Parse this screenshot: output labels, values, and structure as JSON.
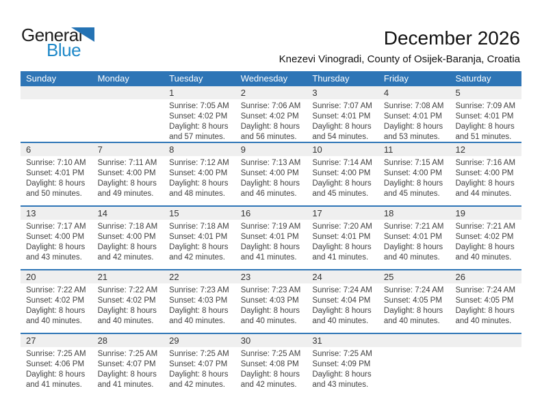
{
  "logo": {
    "part1": "General",
    "part2": "Blue"
  },
  "header": {
    "title": "December 2026",
    "subtitle": "Knezevi Vinogradi, County of Osijek-Baranja, Croatia"
  },
  "colors": {
    "header_bar_blue": "#2e75b6",
    "week_divider_blue": "#2e75b6",
    "day_strip_gray": "#efefef",
    "logo_blue": "#1e88c8",
    "logo_triangle_blue": "#2573b4"
  },
  "calendar": {
    "day_headers": [
      "Sunday",
      "Monday",
      "Tuesday",
      "Wednesday",
      "Thursday",
      "Friday",
      "Saturday"
    ],
    "weeks": [
      [
        null,
        null,
        {
          "day": "1",
          "sunrise": "Sunrise: 7:05 AM",
          "sunset": "Sunset: 4:02 PM",
          "daylight1": "Daylight: 8 hours",
          "daylight2": "and 57 minutes."
        },
        {
          "day": "2",
          "sunrise": "Sunrise: 7:06 AM",
          "sunset": "Sunset: 4:02 PM",
          "daylight1": "Daylight: 8 hours",
          "daylight2": "and 56 minutes."
        },
        {
          "day": "3",
          "sunrise": "Sunrise: 7:07 AM",
          "sunset": "Sunset: 4:01 PM",
          "daylight1": "Daylight: 8 hours",
          "daylight2": "and 54 minutes."
        },
        {
          "day": "4",
          "sunrise": "Sunrise: 7:08 AM",
          "sunset": "Sunset: 4:01 PM",
          "daylight1": "Daylight: 8 hours",
          "daylight2": "and 53 minutes."
        },
        {
          "day": "5",
          "sunrise": "Sunrise: 7:09 AM",
          "sunset": "Sunset: 4:01 PM",
          "daylight1": "Daylight: 8 hours",
          "daylight2": "and 51 minutes."
        }
      ],
      [
        {
          "day": "6",
          "sunrise": "Sunrise: 7:10 AM",
          "sunset": "Sunset: 4:01 PM",
          "daylight1": "Daylight: 8 hours",
          "daylight2": "and 50 minutes."
        },
        {
          "day": "7",
          "sunrise": "Sunrise: 7:11 AM",
          "sunset": "Sunset: 4:00 PM",
          "daylight1": "Daylight: 8 hours",
          "daylight2": "and 49 minutes."
        },
        {
          "day": "8",
          "sunrise": "Sunrise: 7:12 AM",
          "sunset": "Sunset: 4:00 PM",
          "daylight1": "Daylight: 8 hours",
          "daylight2": "and 48 minutes."
        },
        {
          "day": "9",
          "sunrise": "Sunrise: 7:13 AM",
          "sunset": "Sunset: 4:00 PM",
          "daylight1": "Daylight: 8 hours",
          "daylight2": "and 46 minutes."
        },
        {
          "day": "10",
          "sunrise": "Sunrise: 7:14 AM",
          "sunset": "Sunset: 4:00 PM",
          "daylight1": "Daylight: 8 hours",
          "daylight2": "and 45 minutes."
        },
        {
          "day": "11",
          "sunrise": "Sunrise: 7:15 AM",
          "sunset": "Sunset: 4:00 PM",
          "daylight1": "Daylight: 8 hours",
          "daylight2": "and 45 minutes."
        },
        {
          "day": "12",
          "sunrise": "Sunrise: 7:16 AM",
          "sunset": "Sunset: 4:00 PM",
          "daylight1": "Daylight: 8 hours",
          "daylight2": "and 44 minutes."
        }
      ],
      [
        {
          "day": "13",
          "sunrise": "Sunrise: 7:17 AM",
          "sunset": "Sunset: 4:00 PM",
          "daylight1": "Daylight: 8 hours",
          "daylight2": "and 43 minutes."
        },
        {
          "day": "14",
          "sunrise": "Sunrise: 7:18 AM",
          "sunset": "Sunset: 4:00 PM",
          "daylight1": "Daylight: 8 hours",
          "daylight2": "and 42 minutes."
        },
        {
          "day": "15",
          "sunrise": "Sunrise: 7:18 AM",
          "sunset": "Sunset: 4:01 PM",
          "daylight1": "Daylight: 8 hours",
          "daylight2": "and 42 minutes."
        },
        {
          "day": "16",
          "sunrise": "Sunrise: 7:19 AM",
          "sunset": "Sunset: 4:01 PM",
          "daylight1": "Daylight: 8 hours",
          "daylight2": "and 41 minutes."
        },
        {
          "day": "17",
          "sunrise": "Sunrise: 7:20 AM",
          "sunset": "Sunset: 4:01 PM",
          "daylight1": "Daylight: 8 hours",
          "daylight2": "and 41 minutes."
        },
        {
          "day": "18",
          "sunrise": "Sunrise: 7:21 AM",
          "sunset": "Sunset: 4:01 PM",
          "daylight1": "Daylight: 8 hours",
          "daylight2": "and 40 minutes."
        },
        {
          "day": "19",
          "sunrise": "Sunrise: 7:21 AM",
          "sunset": "Sunset: 4:02 PM",
          "daylight1": "Daylight: 8 hours",
          "daylight2": "and 40 minutes."
        }
      ],
      [
        {
          "day": "20",
          "sunrise": "Sunrise: 7:22 AM",
          "sunset": "Sunset: 4:02 PM",
          "daylight1": "Daylight: 8 hours",
          "daylight2": "and 40 minutes."
        },
        {
          "day": "21",
          "sunrise": "Sunrise: 7:22 AM",
          "sunset": "Sunset: 4:02 PM",
          "daylight1": "Daylight: 8 hours",
          "daylight2": "and 40 minutes."
        },
        {
          "day": "22",
          "sunrise": "Sunrise: 7:23 AM",
          "sunset": "Sunset: 4:03 PM",
          "daylight1": "Daylight: 8 hours",
          "daylight2": "and 40 minutes."
        },
        {
          "day": "23",
          "sunrise": "Sunrise: 7:23 AM",
          "sunset": "Sunset: 4:03 PM",
          "daylight1": "Daylight: 8 hours",
          "daylight2": "and 40 minutes."
        },
        {
          "day": "24",
          "sunrise": "Sunrise: 7:24 AM",
          "sunset": "Sunset: 4:04 PM",
          "daylight1": "Daylight: 8 hours",
          "daylight2": "and 40 minutes."
        },
        {
          "day": "25",
          "sunrise": "Sunrise: 7:24 AM",
          "sunset": "Sunset: 4:05 PM",
          "daylight1": "Daylight: 8 hours",
          "daylight2": "and 40 minutes."
        },
        {
          "day": "26",
          "sunrise": "Sunrise: 7:24 AM",
          "sunset": "Sunset: 4:05 PM",
          "daylight1": "Daylight: 8 hours",
          "daylight2": "and 40 minutes."
        }
      ],
      [
        {
          "day": "27",
          "sunrise": "Sunrise: 7:25 AM",
          "sunset": "Sunset: 4:06 PM",
          "daylight1": "Daylight: 8 hours",
          "daylight2": "and 41 minutes."
        },
        {
          "day": "28",
          "sunrise": "Sunrise: 7:25 AM",
          "sunset": "Sunset: 4:07 PM",
          "daylight1": "Daylight: 8 hours",
          "daylight2": "and 41 minutes."
        },
        {
          "day": "29",
          "sunrise": "Sunrise: 7:25 AM",
          "sunset": "Sunset: 4:07 PM",
          "daylight1": "Daylight: 8 hours",
          "daylight2": "and 42 minutes."
        },
        {
          "day": "30",
          "sunrise": "Sunrise: 7:25 AM",
          "sunset": "Sunset: 4:08 PM",
          "daylight1": "Daylight: 8 hours",
          "daylight2": "and 42 minutes."
        },
        {
          "day": "31",
          "sunrise": "Sunrise: 7:25 AM",
          "sunset": "Sunset: 4:09 PM",
          "daylight1": "Daylight: 8 hours",
          "daylight2": "and 43 minutes."
        },
        null,
        null
      ]
    ]
  }
}
